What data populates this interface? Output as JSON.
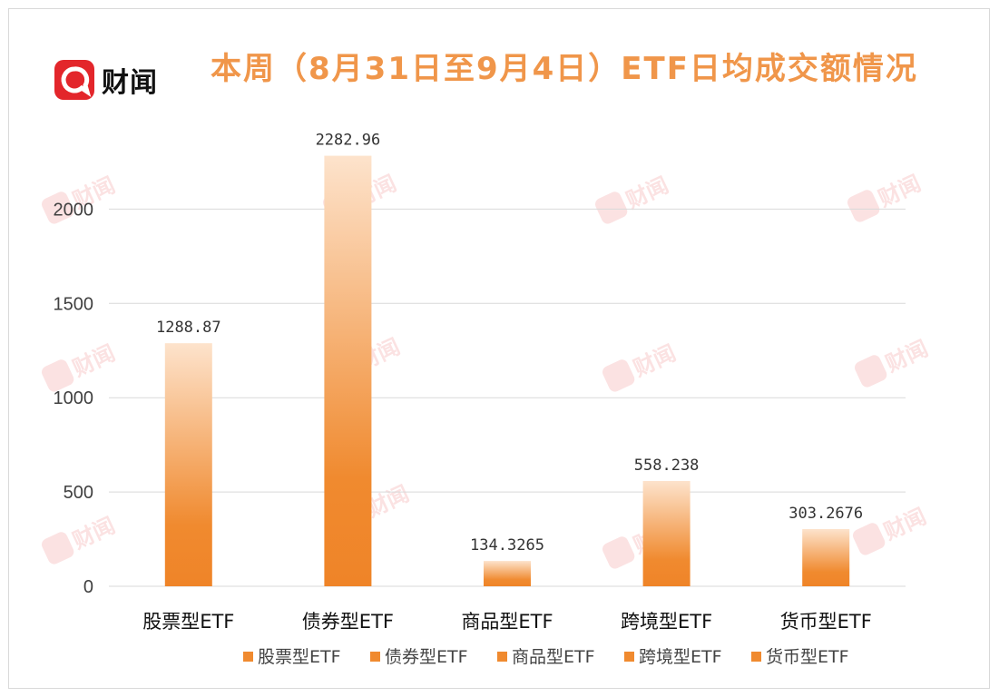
{
  "logo": {
    "text": "财闻"
  },
  "watermark": {
    "text": "财闻"
  },
  "chart_data": {
    "type": "bar",
    "title": "本周（8月31日至9月4日）ETF日均成交额情况",
    "categories": [
      "股票型ETF",
      "债券型ETF",
      "商品型ETF",
      "跨境型ETF",
      "货币型ETF"
    ],
    "values": [
      1288.87,
      2282.96,
      134.3265,
      558.238,
      303.2676
    ],
    "value_labels": [
      "1288.87",
      "2282.96",
      "134.3265",
      "558.238",
      "303.2676"
    ],
    "ylim": [
      0,
      2500
    ],
    "yticks": [
      0,
      500,
      1000,
      1500,
      2000
    ],
    "grid": true,
    "legend": {
      "position": "bottom",
      "entries": [
        "股票型ETF",
        "债券型ETF",
        "商品型ETF",
        "跨境型ETF",
        "货币型ETF"
      ]
    },
    "colors": {
      "bar_top": "#fde3cc",
      "bar_bottom": "#f08a2f",
      "legend_marker": "#f08a2f",
      "grid": "#d9d9d9",
      "title": "#f0964a"
    }
  }
}
